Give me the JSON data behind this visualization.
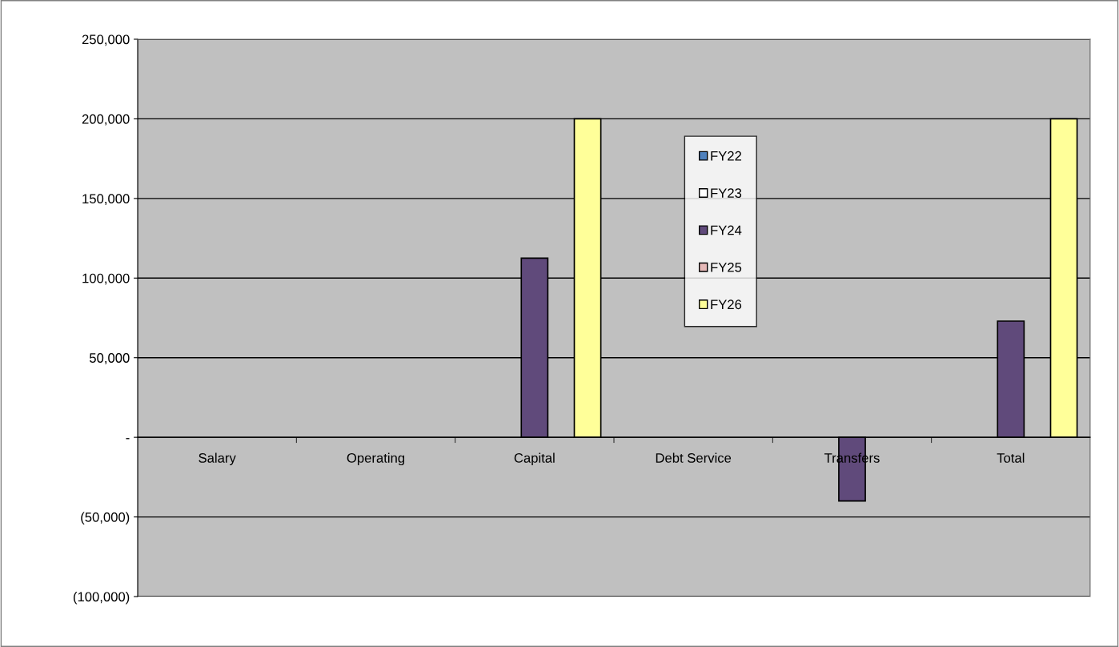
{
  "chart_data": {
    "type": "bar",
    "categories": [
      "Salary",
      "Operating",
      "Capital",
      "Debt Service",
      "Transfers",
      "Total"
    ],
    "series": [
      {
        "name": "FY22",
        "color": "#4f81bd",
        "values": [
          null,
          null,
          null,
          null,
          null,
          null
        ]
      },
      {
        "name": "FY23",
        "color": "#ffffff",
        "values": [
          null,
          null,
          null,
          null,
          null,
          null
        ]
      },
      {
        "name": "FY24",
        "color": "#604a7b",
        "values": [
          null,
          null,
          112500,
          null,
          -40000,
          73000
        ]
      },
      {
        "name": "FY25",
        "color": "#e6b9b8",
        "values": [
          null,
          null,
          null,
          null,
          null,
          null
        ]
      },
      {
        "name": "FY26",
        "color": "#ffff99",
        "values": [
          null,
          null,
          200000,
          null,
          null,
          200000
        ]
      }
    ],
    "ylim": [
      -100000,
      250000
    ],
    "yticks": [
      {
        "value": -100000,
        "label": "(100,000)"
      },
      {
        "value": -50000,
        "label": "(50,000)"
      },
      {
        "value": 0,
        "label": "-"
      },
      {
        "value": 50000,
        "label": "50,000"
      },
      {
        "value": 100000,
        "label": "100,000"
      },
      {
        "value": 150000,
        "label": "150,000"
      },
      {
        "value": 200000,
        "label": "200,000"
      },
      {
        "value": 250000,
        "label": "250,000"
      }
    ],
    "grid": "y",
    "legend": "top"
  }
}
